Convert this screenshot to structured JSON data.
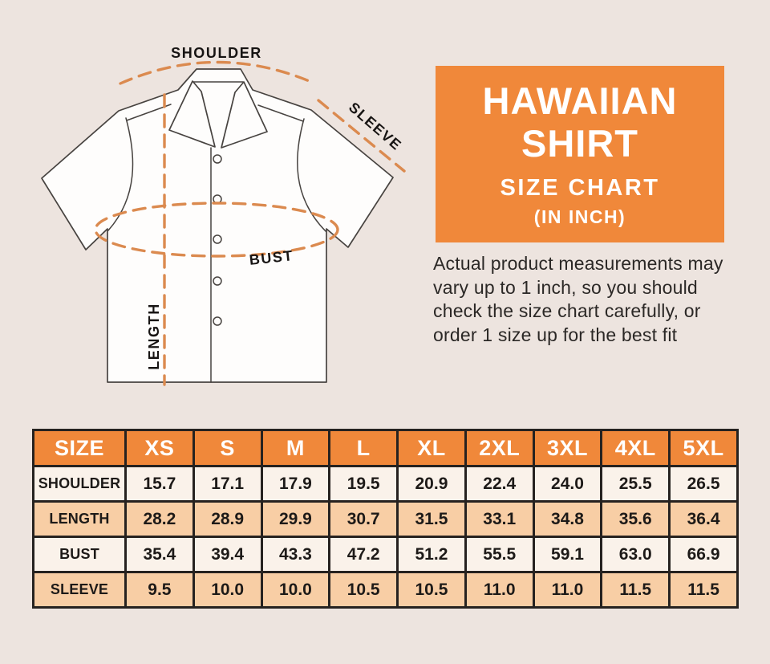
{
  "page": {
    "background": "#EDE4DF"
  },
  "diagram": {
    "labels": {
      "shoulder": "SHOULDER",
      "sleeve": "SLEEVE",
      "bust": "BUST",
      "length": "LENGTH"
    },
    "annotation_color": "#DB8A4F"
  },
  "title_box": {
    "line1": "HAWAIIAN",
    "line2": "SHIRT",
    "line3": "SIZE CHART",
    "line4": "(IN INCH)",
    "background": "#F0883A",
    "text_color": "#FFFFFF"
  },
  "note": {
    "text": "Actual product measurements may vary up to 1 inch, so you should check the size chart carefully, or order 1 size up for the best fit"
  },
  "size_table": {
    "header": [
      "SIZE",
      "XS",
      "S",
      "M",
      "L",
      "XL",
      "2XL",
      "3XL",
      "4XL",
      "5XL"
    ],
    "rows": [
      {
        "label": "SHOULDER",
        "values": [
          "15.7",
          "17.1",
          "17.9",
          "19.5",
          "20.9",
          "22.4",
          "24.0",
          "25.5",
          "26.5"
        ]
      },
      {
        "label": "LENGTH",
        "values": [
          "28.2",
          "28.9",
          "29.9",
          "30.7",
          "31.5",
          "33.1",
          "34.8",
          "35.6",
          "36.4"
        ]
      },
      {
        "label": "BUST",
        "values": [
          "35.4",
          "39.4",
          "43.3",
          "47.2",
          "51.2",
          "55.5",
          "59.1",
          "63.0",
          "66.9"
        ]
      },
      {
        "label": "SLEEVE",
        "values": [
          "9.5",
          "10.0",
          "10.0",
          "10.5",
          "10.5",
          "11.0",
          "11.0",
          "11.5",
          "11.5"
        ]
      }
    ],
    "header_bg": "#F0883A",
    "row_bg_light": "#FAF2EA",
    "row_bg_peach": "#F8CEA5",
    "border_color": "#262220"
  }
}
